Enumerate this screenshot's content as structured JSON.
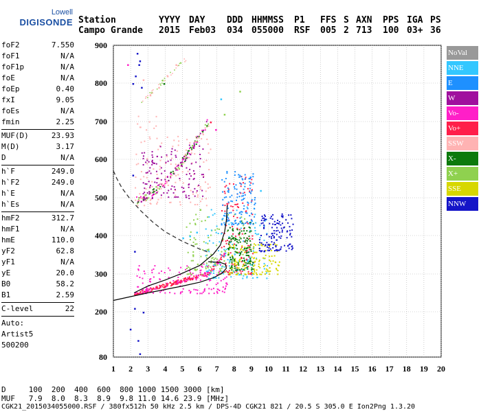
{
  "logo": {
    "line1": "Lowell",
    "line2": "DIGISONDE"
  },
  "header": {
    "columns": [
      {
        "h1": "Station",
        "h2": "Campo Grande"
      },
      {
        "h1": "YYYY",
        "h2": "2015"
      },
      {
        "h1": "DAY",
        "h2": "Feb03"
      },
      {
        "h1": "DDD",
        "h2": "034"
      },
      {
        "h1": "HHMMSS",
        "h2": "055000"
      },
      {
        "h1": "P1",
        "h2": "RSF"
      },
      {
        "h1": "FFS",
        "h2": "005"
      },
      {
        "h1": "S",
        "h2": "2"
      },
      {
        "h1": "AXN",
        "h2": "713"
      },
      {
        "h1": "PPS",
        "h2": "100"
      },
      {
        "h1": "IGA",
        "h2": "03+"
      },
      {
        "h1": "PS",
        "h2": "36"
      }
    ]
  },
  "params": [
    {
      "group": [
        {
          "name": "foF2",
          "value": "7.550"
        },
        {
          "name": "foF1",
          "value": "N/A"
        },
        {
          "name": "foF1p",
          "value": "N/A"
        },
        {
          "name": "foE",
          "value": "N/A"
        },
        {
          "name": "foEp",
          "value": "0.40"
        },
        {
          "name": "fxI",
          "value": "9.05"
        },
        {
          "name": "foEs",
          "value": "N/A"
        },
        {
          "name": "fmin",
          "value": "2.25"
        }
      ]
    },
    {
      "group": [
        {
          "name": "MUF(D)",
          "value": "23.93"
        },
        {
          "name": "M(D)",
          "value": "3.17"
        },
        {
          "name": "D",
          "value": "N/A"
        }
      ]
    },
    {
      "group": [
        {
          "name": "h`F",
          "value": "249.0"
        },
        {
          "name": "h`F2",
          "value": "249.0"
        },
        {
          "name": "h`E",
          "value": "N/A"
        },
        {
          "name": "h`Es",
          "value": "N/A"
        }
      ]
    },
    {
      "group": [
        {
          "name": "hmF2",
          "value": "312.7"
        },
        {
          "name": "hmF1",
          "value": "N/A"
        },
        {
          "name": "hmE",
          "value": "110.0"
        },
        {
          "name": "yF2",
          "value": "62.8"
        },
        {
          "name": "yF1",
          "value": "N/A"
        },
        {
          "name": "yE",
          "value": "20.0"
        },
        {
          "name": "B0",
          "value": "58.2"
        },
        {
          "name": "B1",
          "value": "2.59"
        }
      ]
    },
    {
      "group": [
        {
          "name": "C-level",
          "value": "22"
        }
      ]
    }
  ],
  "auto": {
    "line1": "Auto:",
    "line2": "Artist5",
    "line3": "500200"
  },
  "legend": [
    {
      "label": "NoVal",
      "color": "#999999"
    },
    {
      "label": "NNE",
      "color": "#33c7ff"
    },
    {
      "label": "E",
      "color": "#1e90ff"
    },
    {
      "label": "W",
      "color": "#a0109e"
    },
    {
      "label": "Vo-",
      "color": "#ff1fc8"
    },
    {
      "label": "Vo+",
      "color": "#ff1f4a"
    },
    {
      "label": "SSW",
      "color": "#ffb3b3"
    },
    {
      "label": "X-",
      "color": "#0c7a0c"
    },
    {
      "label": "X+",
      "color": "#8fd14f"
    },
    {
      "label": "SSE",
      "color": "#d7d700"
    },
    {
      "label": "NNW",
      "color": "#1515c8"
    }
  ],
  "bottom": {
    "d_row": "D     100  200  400  600  800 1000 1500 3000 [km]",
    "muf_row": "MUF   7.9  8.0  8.3  8.9  9.8 11.0 14.6 23.9 [MHz]",
    "footer": "CGK21_2015034055000.RSF / 380fx512h 50 kHz 2.5 km / DPS-4D CGK21 821 / 20.5 S 305.0 E Ion2Png 1.3.20"
  },
  "chart_data": {
    "type": "scatter",
    "xlim": [
      1,
      20
    ],
    "ylim": [
      80,
      900
    ],
    "xticks": [
      1,
      2,
      3,
      4,
      5,
      6,
      7,
      8,
      9,
      10,
      11,
      12,
      13,
      14,
      15,
      16,
      17,
      18,
      19,
      20
    ],
    "yticks": [
      80,
      200,
      300,
      400,
      500,
      600,
      700,
      800,
      900
    ],
    "grid": true,
    "x_unit": "MHz",
    "y_unit": "km",
    "profile_line": {
      "x": [
        2.2,
        3,
        4,
        5,
        6,
        6.8,
        7.2,
        7.45,
        7.55,
        7.6
      ],
      "y": [
        250,
        268,
        284,
        302,
        322,
        352,
        375,
        410,
        440,
        480
      ]
    },
    "true_height_profile": {
      "x": [
        1,
        2,
        3,
        4,
        5,
        6,
        6.8,
        7.3,
        7.55,
        7.5,
        7.2,
        6.5
      ],
      "y": [
        230,
        240,
        250,
        259,
        268,
        278,
        290,
        302,
        315,
        325,
        330,
        332
      ]
    },
    "dashed_curve": {
      "x": [
        1,
        1.2,
        1.5,
        2,
        2.6,
        3.3,
        4,
        5,
        6,
        6.6
      ],
      "y": [
        570,
        550,
        525,
        495,
        465,
        435,
        410,
        385,
        365,
        355
      ]
    },
    "clusters": [
      {
        "color": "#ff1fc8",
        "x": [
          2.3,
          7.6
        ],
        "y": [
          250,
          330
        ]
      },
      {
        "color": "#8fd14f",
        "x": [
          5.2,
          8.6
        ],
        "y": [
          300,
          460
        ]
      },
      {
        "color": "#ff1f4a",
        "x": [
          7.2,
          9.1
        ],
        "y": [
          300,
          560
        ]
      },
      {
        "color": "#33c7ff",
        "x": [
          6.3,
          9.9
        ],
        "y": [
          290,
          480
        ]
      },
      {
        "color": "#d7d700",
        "x": [
          7.6,
          10.6
        ],
        "y": [
          300,
          380
        ]
      },
      {
        "color": "#1515c8",
        "x": [
          9.4,
          11.4
        ],
        "y": [
          360,
          460
        ]
      },
      {
        "color": "#0c7a0c",
        "x": [
          7.6,
          9.1
        ],
        "y": [
          310,
          440
        ]
      },
      {
        "color": "#ffb3b3",
        "x": [
          2.2,
          6.6
        ],
        "y": [
          480,
          720
        ]
      },
      {
        "color": "#a0109e",
        "x": [
          2.6,
          6.2
        ],
        "y": [
          500,
          640
        ]
      },
      {
        "color": "#1e90ff",
        "x": [
          7.2,
          9.2
        ],
        "y": [
          430,
          570
        ]
      }
    ],
    "sparse_points": [
      {
        "x": 2.35,
        "y": 880,
        "c": "#1515c8"
      },
      {
        "x": 2.5,
        "y": 860,
        "c": "#1515c8"
      },
      {
        "x": 2.1,
        "y": 800,
        "c": "#1515c8"
      },
      {
        "x": 2.25,
        "y": 820,
        "c": "#1515c8"
      },
      {
        "x": 2.6,
        "y": 790,
        "c": "#1515c8"
      },
      {
        "x": 2.45,
        "y": 850,
        "c": "#1515c8"
      },
      {
        "x": 2.7,
        "y": 810,
        "c": "#ffb3b3"
      },
      {
        "x": 3.1,
        "y": 770,
        "c": "#ffb3b3"
      },
      {
        "x": 3.6,
        "y": 790,
        "c": "#ffb3b3"
      },
      {
        "x": 4.1,
        "y": 820,
        "c": "#ffb3b3"
      },
      {
        "x": 4.6,
        "y": 850,
        "c": "#ffb3b3"
      },
      {
        "x": 3.9,
        "y": 800,
        "c": "#0c7a0c"
      },
      {
        "x": 1.8,
        "y": 850,
        "c": "#ff1fc8"
      },
      {
        "x": 2.2,
        "y": 360,
        "c": "#1515c8"
      },
      {
        "x": 2.2,
        "y": 210,
        "c": "#1515c8"
      },
      {
        "x": 1.95,
        "y": 155,
        "c": "#1515c8"
      },
      {
        "x": 2.4,
        "y": 125,
        "c": "#1515c8"
      },
      {
        "x": 2.5,
        "y": 90,
        "c": "#1515c8"
      },
      {
        "x": 2.7,
        "y": 200,
        "c": "#1515c8"
      },
      {
        "x": 2.1,
        "y": 560,
        "c": "#1515c8"
      },
      {
        "x": 5.4,
        "y": 400,
        "c": "#33c7ff"
      },
      {
        "x": 5.0,
        "y": 395,
        "c": "#33c7ff"
      },
      {
        "x": 5.8,
        "y": 410,
        "c": "#33c7ff"
      },
      {
        "x": 7.2,
        "y": 760,
        "c": "#33c7ff"
      },
      {
        "x": 7.4,
        "y": 720,
        "c": "#8fd14f"
      },
      {
        "x": 8.3,
        "y": 780,
        "c": "#8fd14f"
      },
      {
        "x": 6.6,
        "y": 700,
        "c": "#ff1f4a"
      },
      {
        "x": 6.9,
        "y": 680,
        "c": "#ff1fc8"
      },
      {
        "x": 6.0,
        "y": 470,
        "c": "#8fd14f"
      },
      {
        "x": 9.5,
        "y": 520,
        "c": "#33c7ff"
      }
    ]
  }
}
